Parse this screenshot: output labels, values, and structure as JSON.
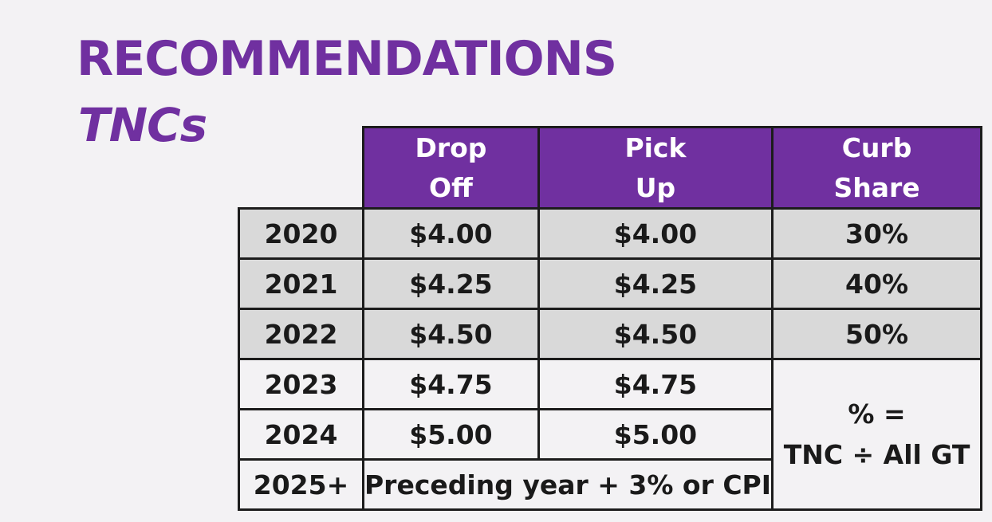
{
  "slide": {
    "title": "RECOMMENDATIONS",
    "subtitle": "TNCs"
  },
  "table": {
    "headers": {
      "drop_off": [
        "Drop",
        "Off"
      ],
      "pick_up": [
        "Pick",
        "Up"
      ],
      "curb_share": [
        "Curb",
        "Share"
      ]
    },
    "rows": [
      {
        "year": "2020",
        "drop_off": "$4.00",
        "pick_up": "$4.00",
        "curb_share": "30%"
      },
      {
        "year": "2021",
        "drop_off": "$4.25",
        "pick_up": "$4.25",
        "curb_share": "40%"
      },
      {
        "year": "2022",
        "drop_off": "$4.50",
        "pick_up": "$4.50",
        "curb_share": "50%"
      },
      {
        "year": "2023",
        "drop_off": "$4.75",
        "pick_up": "$4.75"
      },
      {
        "year": "2024",
        "drop_off": "$5.00",
        "pick_up": "$5.00"
      },
      {
        "year": "2025+",
        "merged_fee": "Preceding year + 3% or CPI"
      }
    ],
    "curb_share_note": [
      "% =",
      "TNC ÷ All GT"
    ]
  },
  "colors": {
    "accent": "#7030a0",
    "shaded_row": "#d9d9d9",
    "background": "#f3f2f4",
    "border": "#1c1c1c"
  }
}
